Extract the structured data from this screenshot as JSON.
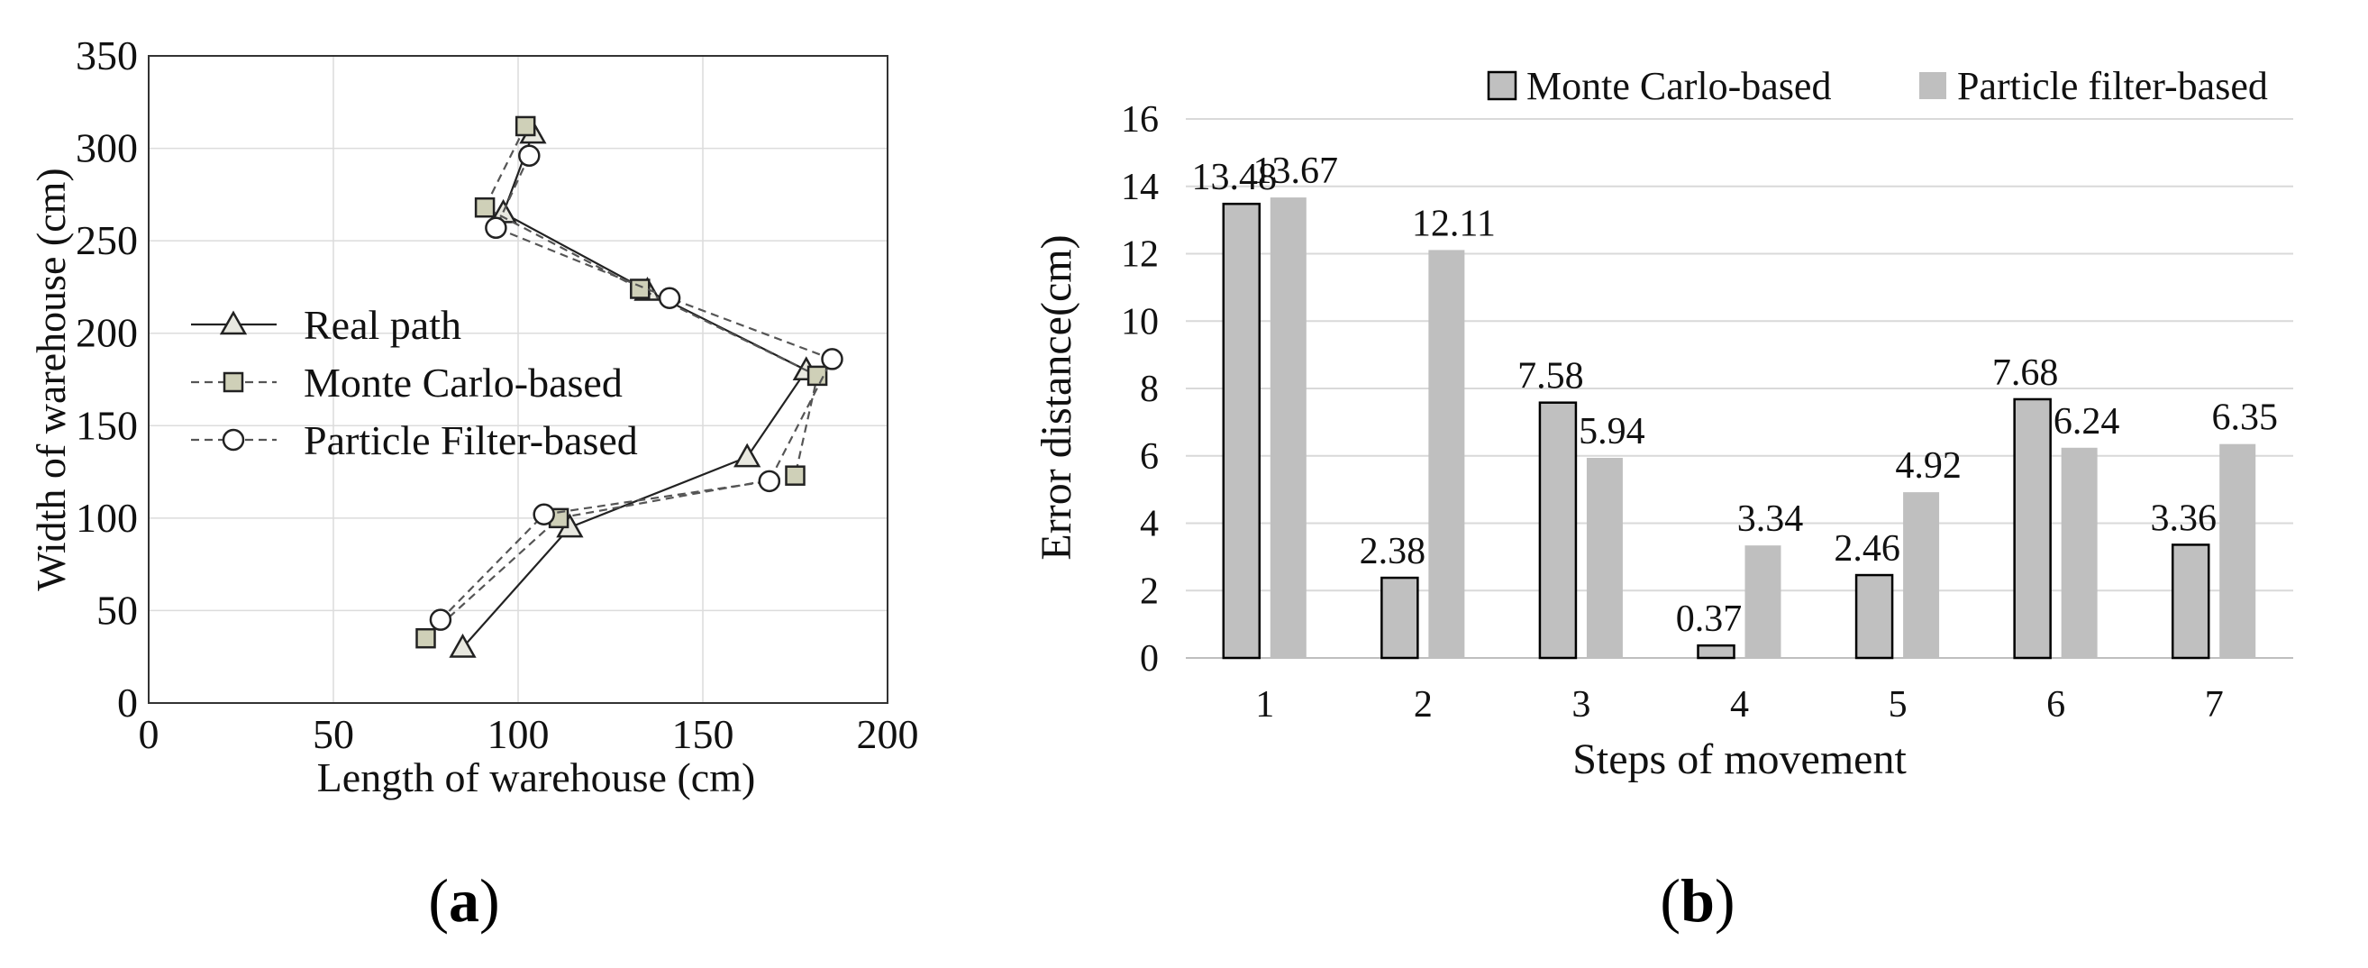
{
  "chart_data": [
    {
      "id": "a",
      "type": "line",
      "panel_label": "a",
      "xlabel": "Length of warehouse (cm)",
      "ylabel": "Width of warehouse (cm)",
      "xlim": [
        0,
        200
      ],
      "ylim": [
        0,
        350
      ],
      "xticks": [
        0,
        50,
        100,
        150,
        200
      ],
      "yticks": [
        0,
        50,
        100,
        150,
        200,
        250,
        300,
        350
      ],
      "grid": true,
      "legend_position": "middle-left",
      "series": [
        {
          "name": "Real path",
          "marker": "triangle",
          "style": "solid",
          "points": [
            [
              104,
              308
            ],
            [
              96,
              265
            ],
            [
              135,
              223
            ],
            [
              178,
              180
            ],
            [
              162,
              133
            ],
            [
              114,
              95
            ],
            [
              85,
              30
            ]
          ]
        },
        {
          "name": "Monte Carlo-based",
          "marker": "square",
          "style": "dashed",
          "points": [
            [
              102,
              312
            ],
            [
              91,
              268
            ],
            [
              133,
              224
            ],
            [
              181,
              177
            ],
            [
              175,
              123
            ],
            [
              111,
              100
            ],
            [
              75,
              35
            ]
          ]
        },
        {
          "name": "Particle Filter-based",
          "marker": "circle",
          "style": "dashed",
          "points": [
            [
              103,
              296
            ],
            [
              94,
              257
            ],
            [
              141,
              219
            ],
            [
              185,
              186
            ],
            [
              168,
              120
            ],
            [
              107,
              102
            ],
            [
              79,
              45
            ]
          ]
        }
      ]
    },
    {
      "id": "b",
      "type": "bar",
      "panel_label": "b",
      "xlabel": "Steps of movement",
      "ylabel": "Error distance(cm)",
      "categories": [
        "1",
        "2",
        "3",
        "4",
        "5",
        "6",
        "7"
      ],
      "ylim": [
        0,
        16
      ],
      "yticks": [
        0,
        2,
        4,
        6,
        8,
        10,
        12,
        14,
        16
      ],
      "grid": true,
      "legend_position": "top-right",
      "series": [
        {
          "name": "Monte Carlo-based",
          "color": "#c0c0c0",
          "outlined": true,
          "values": [
            13.48,
            2.38,
            7.58,
            0.37,
            2.46,
            7.68,
            3.36
          ],
          "labels": [
            "13.48",
            "2.38",
            "7.58",
            "0.37",
            "2.46",
            "7.68",
            "3.36"
          ]
        },
        {
          "name": "Particle filter-based",
          "color": "#bfbfbf",
          "outlined": false,
          "values": [
            13.67,
            12.11,
            5.94,
            3.34,
            4.92,
            6.24,
            6.35
          ],
          "labels": [
            "13.67",
            "12.11",
            "5.94",
            "3.34",
            "4.92",
            "6.24",
            "6.35"
          ]
        }
      ]
    }
  ]
}
